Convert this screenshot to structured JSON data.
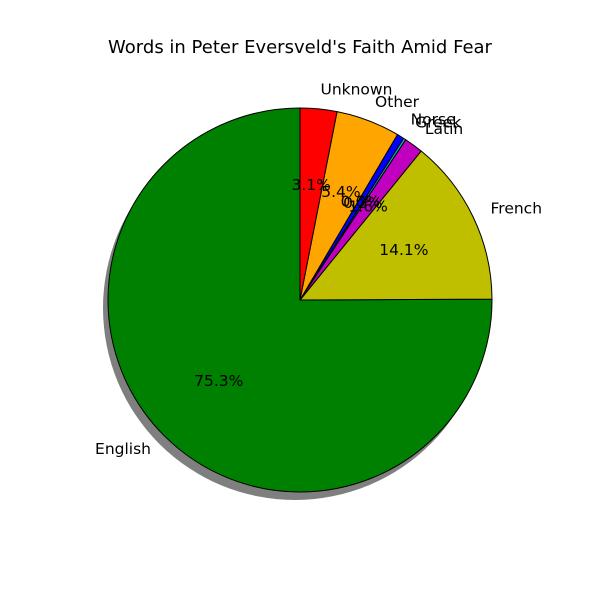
{
  "chart_data": {
    "type": "pie",
    "title": "Words in Peter Eversveld's Faith Amid Fear",
    "start_angle_deg": 90,
    "direction": "counterclockwise",
    "shadow": true,
    "edge_color": "#000000",
    "slices": [
      {
        "label": "English",
        "value": 75.3,
        "pct_label": "75.3%",
        "color": "#008000"
      },
      {
        "label": "French",
        "value": 14.1,
        "pct_label": "14.1%",
        "color": "#bfbf00"
      },
      {
        "label": "Latin",
        "value": 1.6,
        "pct_label": "1.6%",
        "color": "#bf00bf"
      },
      {
        "label": "Greek",
        "value": 0.2,
        "pct_label": "0.2%",
        "color": "#00bfbf"
      },
      {
        "label": "Norse",
        "value": 0.6,
        "pct_label": "0.6%",
        "color": "#0000ff"
      },
      {
        "label": "Other",
        "value": 5.4,
        "pct_label": "5.4%",
        "color": "#ffa500"
      },
      {
        "label": "Unknown",
        "value": 3.1,
        "pct_label": "3.1%",
        "color": "#ff0000"
      }
    ]
  }
}
